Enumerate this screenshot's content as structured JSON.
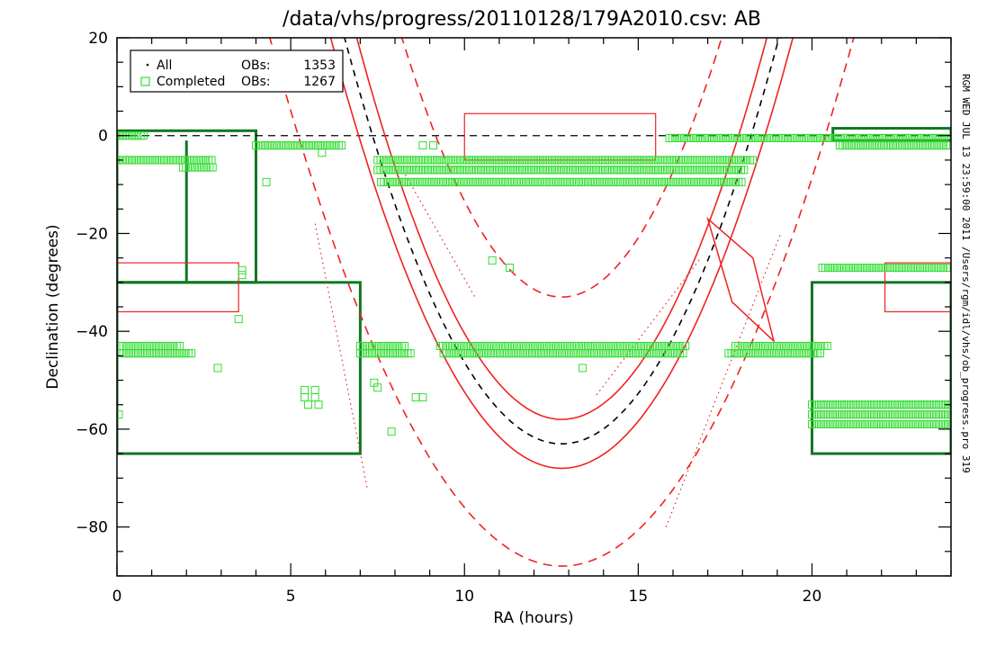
{
  "chart_data": {
    "type": "scatter",
    "title": "/data/vhs/progress/20110128/179A2010.csv: AB",
    "xlabel": "RA (hours)",
    "ylabel": "Declination (degrees)",
    "xlim": [
      0,
      24
    ],
    "ylim": [
      -90,
      20
    ],
    "xticks": [
      0,
      5,
      10,
      15,
      20
    ],
    "xtick_labels": [
      "0",
      "5",
      "10",
      "15",
      "20"
    ],
    "yticks": [
      -80,
      -60,
      -40,
      -20,
      0,
      20
    ],
    "ytick_labels": [
      "−80",
      "−60",
      "−40",
      "−20",
      "0",
      "20"
    ],
    "grid": false,
    "legend_position": "top-left",
    "legend": {
      "row1": {
        "label": "All",
        "obs_label": "OBs:",
        "count": "1353"
      },
      "row2": {
        "label": "Completed",
        "obs_label": "OBs:",
        "count": "1267"
      }
    },
    "side_label": "RGM WED JUL 13 23:59:00 2011 /Users/rgm/idl/vhs/ob_progress.pro 319",
    "colors": {
      "completed": "#33dd33",
      "footprint": "#117722",
      "boundary": "#ee2222",
      "axes": "#000000"
    },
    "completed_ob_bands": [
      {
        "dec": 0,
        "ra": [
          0.0,
          0.8
        ]
      },
      {
        "dec": -2,
        "ra": [
          4.0,
          6.5
        ]
      },
      {
        "dec": -5,
        "ra": [
          0.0,
          2.8
        ]
      },
      {
        "dec": -6.5,
        "ra": [
          1.9,
          2.8
        ]
      },
      {
        "dec": -0.5,
        "ra": [
          15.9,
          24.0
        ]
      },
      {
        "dec": -2,
        "ra": [
          20.8,
          24.0
        ]
      },
      {
        "dec": -5,
        "ra": [
          7.5,
          18.3
        ]
      },
      {
        "dec": -7,
        "ra": [
          7.5,
          18.1
        ]
      },
      {
        "dec": -9.5,
        "ra": [
          7.6,
          18.0
        ]
      },
      {
        "dec": -27,
        "ra": [
          20.3,
          24.0
        ]
      },
      {
        "dec": -43,
        "ra": [
          0.1,
          1.8
        ]
      },
      {
        "dec": -44.5,
        "ra": [
          0.1,
          2.2
        ]
      },
      {
        "dec": -43,
        "ra": [
          7.0,
          8.3
        ]
      },
      {
        "dec": -44.5,
        "ra": [
          7.0,
          8.5
        ]
      },
      {
        "dec": -43,
        "ra": [
          9.3,
          16.4
        ]
      },
      {
        "dec": -44.5,
        "ra": [
          9.4,
          16.3
        ]
      },
      {
        "dec": -43,
        "ra": [
          17.8,
          20.5
        ]
      },
      {
        "dec": -44.5,
        "ra": [
          17.6,
          20.3
        ]
      },
      {
        "dec": -55,
        "ra": [
          20.0,
          24.0
        ]
      },
      {
        "dec": -57,
        "ra": [
          20.0,
          24.0
        ]
      },
      {
        "dec": -59,
        "ra": [
          20.0,
          24.0
        ]
      }
    ],
    "completed_ob_points": [
      [
        0.05,
        -57
      ],
      [
        2.9,
        -47.5
      ],
      [
        3.5,
        -37.5
      ],
      [
        3.6,
        -27.5
      ],
      [
        3.6,
        -28.5
      ],
      [
        4.3,
        -9.5
      ],
      [
        5.9,
        -3.5
      ],
      [
        5.4,
        -52
      ],
      [
        5.4,
        -53.5
      ],
      [
        5.5,
        -55
      ],
      [
        5.7,
        -52
      ],
      [
        5.7,
        -53.5
      ],
      [
        5.8,
        -55
      ],
      [
        7.4,
        -50.5
      ],
      [
        7.5,
        -51.5
      ],
      [
        8.6,
        -53.5
      ],
      [
        8.8,
        -53.5
      ],
      [
        7.9,
        -60.5
      ],
      [
        10.8,
        -25.5
      ],
      [
        11.3,
        -27
      ],
      [
        13.4,
        -47.5
      ],
      [
        8.8,
        -2
      ],
      [
        9.1,
        -2
      ]
    ],
    "footprint_rects": [
      {
        "ra": [
          0,
          4
        ],
        "dec": [
          -30,
          1
        ]
      },
      {
        "ra": [
          0,
          7
        ],
        "dec": [
          -65,
          -30
        ]
      },
      {
        "ra": [
          20,
          24
        ],
        "dec": [
          -65,
          -30
        ]
      },
      {
        "ra": [
          20.6,
          24
        ],
        "dec": [
          -1,
          1.5
        ]
      }
    ],
    "footprint_lines": [
      {
        "ra": [
          2.0,
          2.0
        ],
        "dec": [
          -1,
          -30
        ]
      }
    ],
    "red_rects": [
      {
        "ra": [
          10,
          15.5
        ],
        "dec": [
          -5,
          4.5
        ]
      },
      {
        "ra": [
          0,
          3.5
        ],
        "dec": [
          -36,
          -26
        ]
      },
      {
        "ra": [
          22.1,
          24
        ],
        "dec": [
          -36,
          -26
        ]
      }
    ],
    "galactic_plane_box": {
      "ra": [
        17.0,
        18.3,
        18.9,
        17.7
      ],
      "dec": [
        -17,
        -25,
        -42,
        -34
      ]
    },
    "equator_dashed": {
      "dec": 0,
      "ra": [
        0,
        24
      ]
    },
    "solid_curves": [
      {
        "center_ra": 12.8,
        "min_dec": -58,
        "width": 5.9
      },
      {
        "center_ra": 12.8,
        "min_dec": -68,
        "width": 6.65
      }
    ],
    "black_dashed_curve": {
      "center_ra": 12.8,
      "min_dec": -63,
      "width": 6.25
    },
    "red_dashed_outer": {
      "center_ra": 12.8,
      "min_dec": -88,
      "width": 8.4
    },
    "red_dashed_inner": {
      "center_ra": 12.8,
      "min_dec": -33,
      "width": 4.6
    },
    "dotted_lines": [
      {
        "ra": [
          5.7,
          7.2
        ],
        "dec": [
          -18,
          -72
        ]
      },
      {
        "ra": [
          8.3,
          10.3
        ],
        "dec": [
          -8,
          -33
        ]
      },
      {
        "ra": [
          13.8,
          16.8
        ],
        "dec": [
          -53,
          -25
        ]
      },
      {
        "ra": [
          15.8,
          19.1
        ],
        "dec": [
          -80,
          -20
        ]
      }
    ]
  }
}
